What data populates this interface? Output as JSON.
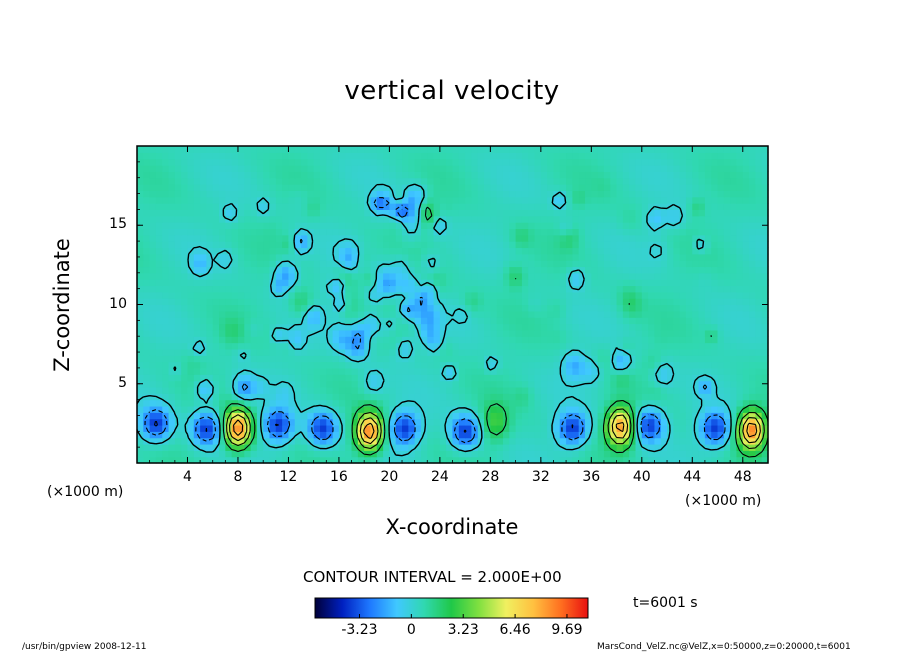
{
  "chart_data": {
    "type": "heatmap",
    "title": "vertical velocity",
    "xlabel": "X-coordinate",
    "ylabel": "Z-coordinate",
    "x_unit_label": "(×1000 m)",
    "x_ticks": [
      4,
      8,
      12,
      16,
      20,
      24,
      28,
      32,
      36,
      40,
      44,
      48
    ],
    "y_ticks": [
      5,
      10,
      15
    ],
    "xlim": [
      0,
      50
    ],
    "ylim": [
      0,
      20
    ],
    "contour_interval": "CONTOUR INTERVAL = 2.000E+00",
    "time_label": "t=6001 s",
    "colorbar": {
      "tick_labels": [
        "-3.23",
        "0",
        "3.23",
        "6.46",
        "9.69"
      ],
      "tick_values": [
        -3.23,
        0,
        3.23,
        6.46,
        9.69
      ],
      "range": [
        -6.0,
        11.0
      ],
      "colors": [
        "#00003a",
        "#0020c0",
        "#1e78ff",
        "#40c8ff",
        "#30d8b0",
        "#20c848",
        "#80e040",
        "#f0f060",
        "#ffc040",
        "#ff7020",
        "#e81010"
      ]
    },
    "hotspots": [
      {
        "x": 8.0,
        "z": 2.2,
        "value": 9.7
      },
      {
        "x": 18.4,
        "z": 2.0,
        "value": 9.7
      },
      {
        "x": 38.3,
        "z": 2.3,
        "value": 9.0
      },
      {
        "x": 48.7,
        "z": 2.1,
        "value": 9.5
      },
      {
        "x": 28.4,
        "z": 2.6,
        "value": 3.2
      }
    ],
    "downdrafts": [
      {
        "x": 1.5,
        "z": 2.5
      },
      {
        "x": 5.5,
        "z": 2.2
      },
      {
        "x": 11.2,
        "z": 2.4
      },
      {
        "x": 14.7,
        "z": 2.2
      },
      {
        "x": 21.2,
        "z": 2.2
      },
      {
        "x": 26.0,
        "z": 2.0
      },
      {
        "x": 34.5,
        "z": 2.2
      },
      {
        "x": 40.6,
        "z": 2.4
      },
      {
        "x": 45.8,
        "z": 2.2
      }
    ]
  },
  "footer": {
    "left": "/usr/bin/gpview  2008-12-11",
    "right": "MarsCond_VelZ.nc@VelZ,x=0:50000,z=0:20000,t=6001"
  }
}
